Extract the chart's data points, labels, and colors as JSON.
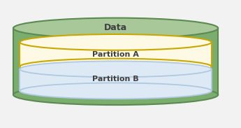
{
  "title": "Data",
  "partition_a_label": "Partition A",
  "partition_b_label": "Partition B",
  "bg_color": "#f2f2f2",
  "cylinder_fill": "#7aad6e",
  "cylinder_edge": "#5a8a50",
  "cylinder_top_fill": "#a8c89a",
  "cylinder_top_edge": "#5a8a50",
  "partition_a_fill": "#fef9e4",
  "partition_a_edge": "#c8a800",
  "partition_b_fill": "#ddeaf5",
  "partition_b_edge": "#b0c8e0",
  "text_color": "#404040",
  "title_fontsize": 9,
  "label_fontsize": 8
}
